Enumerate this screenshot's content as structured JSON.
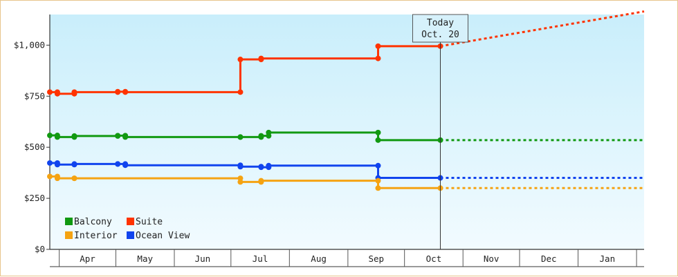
{
  "chart_data": {
    "type": "line",
    "interpolation": "step",
    "ylim": [
      0,
      1150
    ],
    "yticks": [
      {
        "value": 0,
        "label": "$0"
      },
      {
        "value": 250,
        "label": "$250"
      },
      {
        "value": 500,
        "label": "$500"
      },
      {
        "value": 750,
        "label": "$750"
      },
      {
        "value": 1000,
        "label": "$1,000"
      }
    ],
    "x_range": [
      "2023-03-27",
      "2024-02-05"
    ],
    "month_ticks": [
      {
        "label": "Apr",
        "start": "2023-04-01",
        "end": "2023-05-01"
      },
      {
        "label": "May",
        "start": "2023-05-01",
        "end": "2023-06-01"
      },
      {
        "label": "Jun",
        "start": "2023-06-01",
        "end": "2023-07-01"
      },
      {
        "label": "Jul",
        "start": "2023-07-01",
        "end": "2023-08-01"
      },
      {
        "label": "Aug",
        "start": "2023-08-01",
        "end": "2023-09-01"
      },
      {
        "label": "Sep",
        "start": "2023-09-01",
        "end": "2023-10-01"
      },
      {
        "label": "Oct",
        "start": "2023-10-01",
        "end": "2023-11-01"
      },
      {
        "label": "Nov",
        "start": "2023-11-01",
        "end": "2023-12-01"
      },
      {
        "label": "Dec",
        "start": "2023-12-01",
        "end": "2024-01-01"
      },
      {
        "label": "Jan",
        "start": "2024-01-01",
        "end": "2024-02-01"
      }
    ],
    "today": {
      "date": "2023-10-20",
      "label_line1": "Today",
      "label_line2": "Oct. 20"
    },
    "legend": {
      "placement": "bottom-left"
    },
    "series": [
      {
        "name": "Suite",
        "color": "#ff3300",
        "points": [
          [
            "2023-03-27",
            770
          ],
          [
            "2023-03-31",
            762
          ],
          [
            "2023-04-09",
            770
          ],
          [
            "2023-05-02",
            772
          ],
          [
            "2023-05-06",
            770
          ],
          [
            "2023-07-06",
            930
          ],
          [
            "2023-07-17",
            935
          ],
          [
            "2023-09-17",
            995
          ],
          [
            "2023-10-20",
            995
          ]
        ],
        "forecast": [
          [
            "2023-10-20",
            995
          ],
          [
            "2024-02-05",
            1165
          ]
        ]
      },
      {
        "name": "Balcony",
        "color": "#119911",
        "points": [
          [
            "2023-03-27",
            558
          ],
          [
            "2023-03-31",
            550
          ],
          [
            "2023-04-09",
            555
          ],
          [
            "2023-05-02",
            557
          ],
          [
            "2023-05-06",
            550
          ],
          [
            "2023-07-06",
            550
          ],
          [
            "2023-07-17",
            556
          ],
          [
            "2023-07-21",
            572
          ],
          [
            "2023-09-17",
            535
          ],
          [
            "2023-10-20",
            535
          ]
        ],
        "forecast": [
          [
            "2023-10-20",
            535
          ],
          [
            "2024-02-05",
            535
          ]
        ]
      },
      {
        "name": "Ocean View",
        "color": "#1144ee",
        "points": [
          [
            "2023-03-27",
            423
          ],
          [
            "2023-03-31",
            415
          ],
          [
            "2023-04-09",
            418
          ],
          [
            "2023-05-02",
            418
          ],
          [
            "2023-05-06",
            412
          ],
          [
            "2023-07-06",
            405
          ],
          [
            "2023-07-17",
            402
          ],
          [
            "2023-07-21",
            410
          ],
          [
            "2023-09-17",
            350
          ],
          [
            "2023-10-20",
            350
          ]
        ],
        "forecast": [
          [
            "2023-10-20",
            350
          ],
          [
            "2024-02-05",
            350
          ]
        ]
      },
      {
        "name": "Interior",
        "color": "#f5a312",
        "points": [
          [
            "2023-03-27",
            357
          ],
          [
            "2023-03-31",
            348
          ],
          [
            "2023-04-09",
            348
          ],
          [
            "2023-07-06",
            330
          ],
          [
            "2023-07-17",
            336
          ],
          [
            "2023-09-17",
            300
          ],
          [
            "2023-10-20",
            300
          ]
        ],
        "forecast": [
          [
            "2023-10-20",
            300
          ],
          [
            "2024-02-05",
            300
          ]
        ]
      }
    ],
    "legend_order": [
      "Balcony",
      "Suite",
      "Interior",
      "Ocean View"
    ]
  }
}
